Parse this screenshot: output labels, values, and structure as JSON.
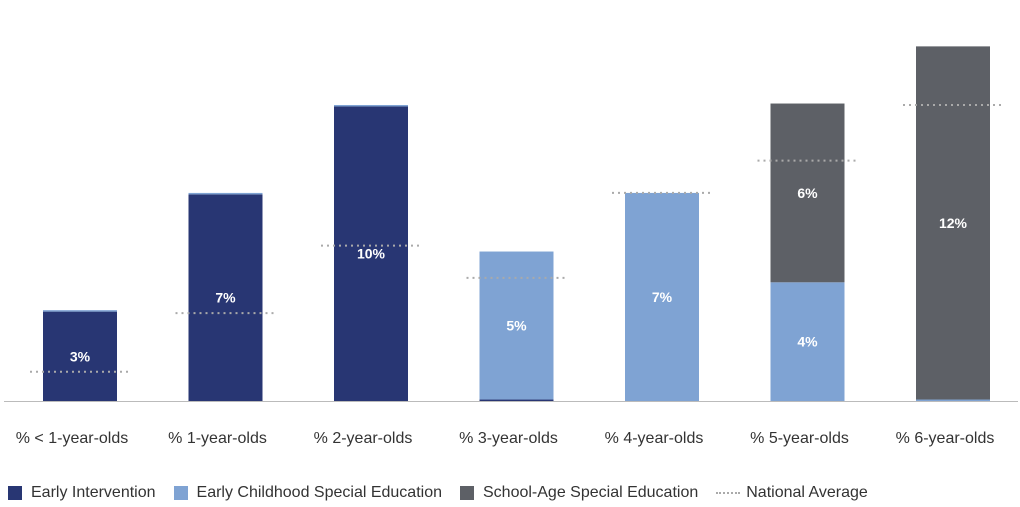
{
  "chart_data": {
    "type": "bar",
    "stacked": true,
    "categories": [
      "% < 1-year-olds",
      "% 1-year-olds",
      "% 2-year-olds",
      "% 3-year-olds",
      "% 4-year-olds",
      "% 5-year-olds",
      "% 6-year-olds"
    ],
    "series": [
      {
        "name": "Early Intervention",
        "color": "#283673",
        "values": [
          3.05,
          7.05,
          10.05,
          0.05,
          0,
          0,
          0
        ],
        "labels": [
          "3%",
          "7%",
          "10%",
          "",
          "",
          "",
          ""
        ]
      },
      {
        "name": "Early Childhood Special Education",
        "color": "#7fa3d3",
        "values": [
          0.05,
          0.05,
          0.05,
          5.05,
          7.1,
          4.05,
          0.05
        ],
        "labels": [
          "",
          "",
          "",
          "5%",
          "7%",
          "4%",
          ""
        ]
      },
      {
        "name": "School-Age Special Education",
        "color": "#5d6066",
        "values": [
          0,
          0,
          0,
          0,
          0,
          6.1,
          12.05
        ],
        "labels": [
          "",
          "",
          "",
          "",
          "",
          "6%",
          "12%"
        ]
      }
    ],
    "national_average": {
      "name": "National Average",
      "color": "#aaaaaa",
      "values": [
        1,
        3,
        5.3,
        4.2,
        7.1,
        8.2,
        10.1
      ]
    },
    "ylim": [
      0,
      13
    ],
    "grid": false,
    "legend": "bottom-left"
  }
}
